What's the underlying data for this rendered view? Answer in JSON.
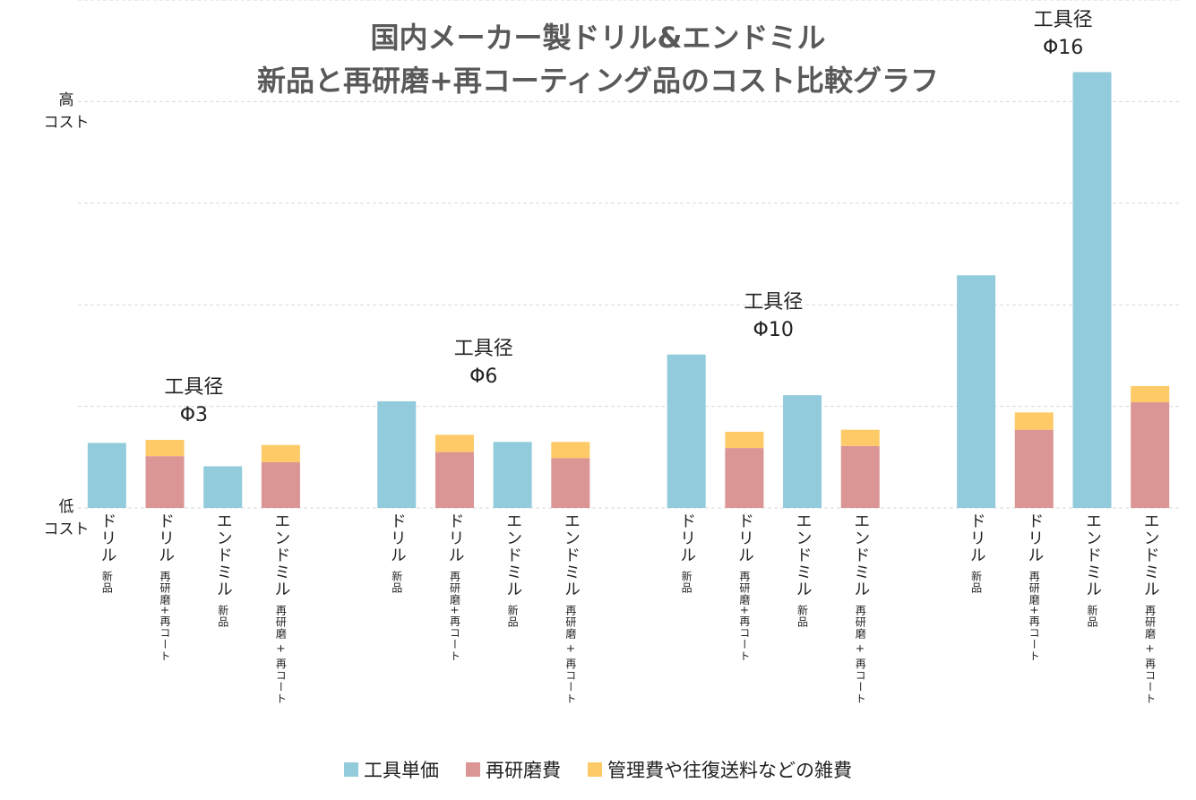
{
  "chart_data": {
    "type": "stacked_bar",
    "title": "国内メーカー製ドリル&エンドミル\n新品と再研磨+再コーティング品のコスト比較グラフ",
    "categories": [
      "ドリル",
      "ドリル",
      "エンドミル",
      "エンドミル",
      "ドリル",
      "ドリル",
      "エンドミル",
      "エンドミル",
      "ドリル",
      "ドリル",
      "エンドミル",
      "エンドミル",
      "ドリル",
      "ドリル",
      "エンドミル",
      "エンドミル"
    ],
    "category_sublabels": [
      "新品",
      "再研磨+再コート",
      "新品",
      "再研磨 + 再コート",
      "新品",
      "再研磨+再コート",
      "新品",
      "再研磨 + 再コート",
      "新品",
      "再研磨+再コート",
      "新品",
      "再研磨 + 再コート",
      "新品",
      "再研磨+再コート",
      "新品",
      "再研磨 + 再コート"
    ],
    "groups": [
      "工具径\nΦ3",
      "工具径\nΦ6",
      "工具径\nΦ10",
      "工具径\nΦ16"
    ],
    "series": [
      {
        "name": "工具単価",
        "color": "#92cbdc",
        "values": [
          0.64,
          null,
          0.41,
          null,
          1.05,
          null,
          0.65,
          null,
          1.51,
          null,
          1.11,
          null,
          2.29,
          null,
          4.29,
          null
        ]
      },
      {
        "name": "再研磨費",
        "color": "#da9594",
        "values": [
          null,
          0.51,
          null,
          0.45,
          null,
          0.55,
          null,
          0.49,
          null,
          0.59,
          null,
          0.61,
          null,
          0.77,
          null,
          1.04
        ]
      },
      {
        "name": "管理費や往復送料などの雑費",
        "color": "#fdca67",
        "values": [
          null,
          0.16,
          null,
          0.17,
          null,
          0.17,
          null,
          0.16,
          null,
          0.16,
          null,
          0.16,
          null,
          0.17,
          null,
          0.16
        ]
      }
    ],
    "ylim": [
      0,
      5
    ],
    "yticks": [
      {
        "value": 0,
        "label": "低\nコスト"
      },
      {
        "value": 4,
        "label": "高\nコスト"
      }
    ],
    "ygrid": [
      0,
      1,
      2,
      3,
      4,
      5
    ],
    "grid": true,
    "legend": "bottom"
  }
}
